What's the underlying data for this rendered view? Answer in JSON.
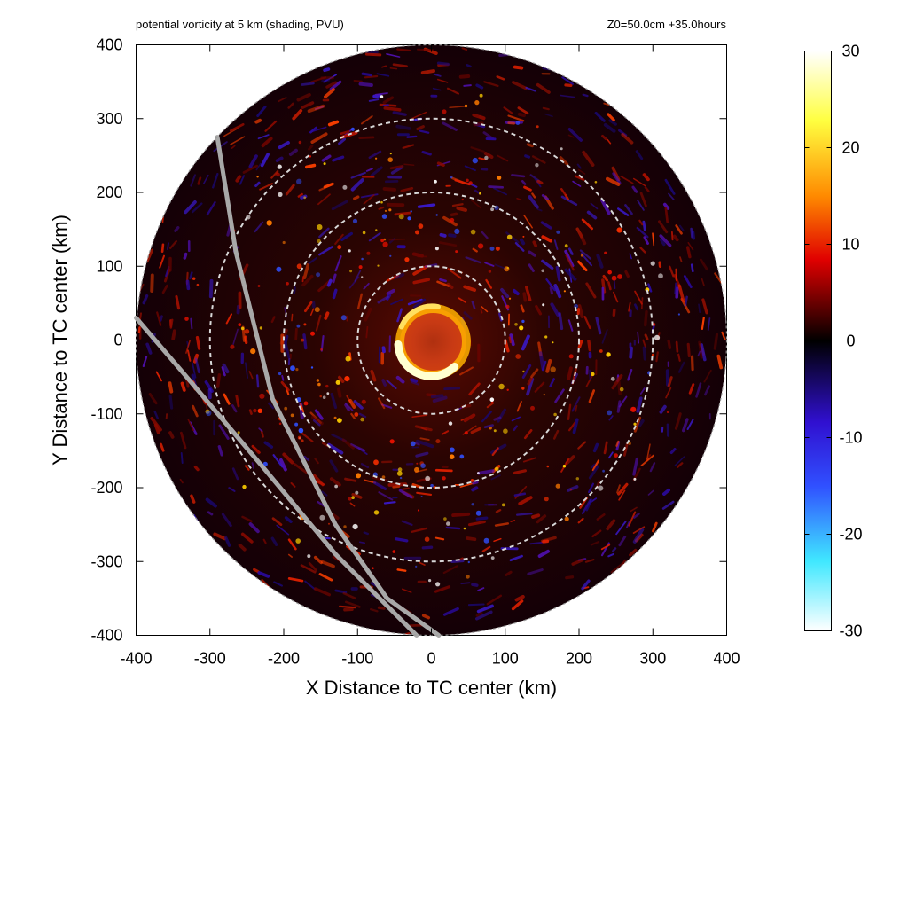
{
  "header": {
    "left_title": "potential vorticity at 5 km (shading, PVU)",
    "right_title": "Z0=50.0cm  +35.0hours"
  },
  "chart_data": {
    "type": "heatmap",
    "title": "potential vorticity at 5 km (shading, PVU)",
    "annotation": "Z0=50.0cm  +35.0hours",
    "xlabel": "X Distance to TC center (km)",
    "ylabel": "Y Distance to TC center (km)",
    "xlim": [
      -400,
      400
    ],
    "ylim": [
      -400,
      400
    ],
    "x_ticks": [
      -400,
      -300,
      -200,
      -100,
      0,
      100,
      200,
      300,
      400
    ],
    "y_ticks": [
      -400,
      -300,
      -200,
      -100,
      0,
      100,
      200,
      300,
      400
    ],
    "domain_radius_km": 400,
    "range_rings_km": [
      100,
      200,
      300
    ],
    "colorbar": {
      "range": [
        -30,
        30
      ],
      "ticks": [
        30,
        20,
        10,
        0,
        -10,
        -20,
        -30
      ],
      "colors": {
        "min": "#ffffff",
        "neg_light": "#40e8ff",
        "neg_mid": "#3040ff",
        "zero": "#000000",
        "pos_mid": "#e00000",
        "pos_high": "#ffb000",
        "max": "#ffffff"
      }
    },
    "features": {
      "eyewall_radius_km": 45,
      "eyewall_max_pvu": 30,
      "tracks": [
        {
          "name": "",
          "points": [
            [
              -290,
              275
            ],
            [
              -265,
              120
            ],
            [
              -215,
              -80
            ],
            [
              -130,
              -250
            ],
            [
              -60,
              -350
            ],
            [
              10,
              -400
            ]
          ]
        },
        {
          "name": "",
          "points": [
            [
              -400,
              30
            ],
            [
              -340,
              -40
            ],
            [
              -230,
              -170
            ],
            [
              -130,
              -290
            ],
            [
              -40,
              -380
            ],
            [
              -20,
              -400
            ]
          ]
        }
      ]
    }
  }
}
